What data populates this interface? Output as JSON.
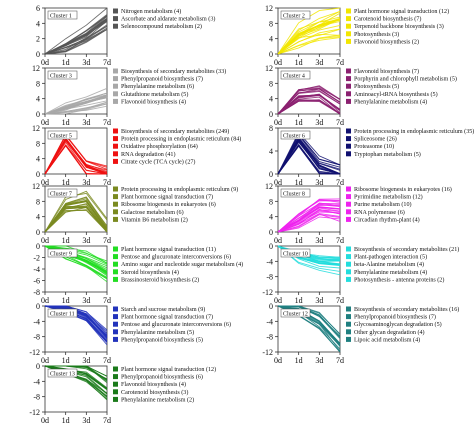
{
  "chart_data": [
    {
      "type": "line",
      "cluster": "Cluster 1",
      "color": "#555555",
      "x": [
        "0d",
        "1d",
        "3d",
        "7d"
      ],
      "yticks": [
        0,
        2,
        4,
        6
      ],
      "ylim": [
        0,
        6
      ],
      "profile": [
        0,
        1.2,
        2.6,
        4.6
      ],
      "spread": 1.3,
      "n": 18,
      "pathways": [
        "Nitrogen metabolism (4)",
        "Ascorbate and aldarate metabolism (3)",
        "Selenocompound metabolism (2)"
      ]
    },
    {
      "type": "line",
      "cluster": "Cluster 2",
      "color": "#f2e600",
      "x": [
        "0d",
        "1d",
        "3d",
        "7d"
      ],
      "yticks": [
        0,
        4,
        8,
        12
      ],
      "ylim": [
        0,
        12
      ],
      "profile": [
        0,
        5,
        7.5,
        9
      ],
      "spread": 4,
      "n": 18,
      "pathways": [
        "Plant hormone signal transduction (12)",
        "Carotenoid biosynthesis (7)",
        "Terpenoid backbone biosynthesis (3)",
        "Photosynthesis (3)",
        "Flavonoid biosynthesis (2)"
      ]
    },
    {
      "type": "line",
      "cluster": "Cluster 3",
      "color": "#a8a8a8",
      "x": [
        "0d",
        "1d",
        "3d",
        "7d"
      ],
      "yticks": [
        0,
        4,
        8,
        12
      ],
      "ylim": [
        0,
        12
      ],
      "profile": [
        0,
        1.5,
        3,
        4.5
      ],
      "spread": 2,
      "n": 18,
      "pathways": [
        "Biosynthesis of secondary metabolites (33)",
        "Phenylpropanoid biosynthesis (7)",
        "Phenylalanine metabolism (6)",
        "Glutathione metabolism (5)",
        "Flavonoid biosynthesis (4)"
      ]
    },
    {
      "type": "line",
      "cluster": "Cluster 4",
      "color": "#8b2070",
      "x": [
        "0d",
        "1d",
        "3d",
        "7d"
      ],
      "yticks": [
        0,
        4,
        8,
        12
      ],
      "ylim": [
        0,
        12
      ],
      "profile": [
        0,
        4.5,
        5,
        1
      ],
      "spread": 2.5,
      "n": 18,
      "pathways": [
        "Flavonoid biosynthesis (7)",
        "Porphyrin and chlorophyll metabolism (5)",
        "Photosynthesis (5)",
        "Aminoacyl-tRNA biosynthesis (5)",
        "Phenylalanine metabolism (4)"
      ]
    },
    {
      "type": "line",
      "cluster": "Cluster 5",
      "color": "#ee1111",
      "x": [
        "0d",
        "1d",
        "3d",
        "7d"
      ],
      "yticks": [
        0,
        4,
        8,
        12
      ],
      "ylim": [
        0,
        12
      ],
      "profile": [
        0,
        9,
        2,
        0
      ],
      "spread": 2,
      "n": 18,
      "pathways": [
        "Biosynthesis of secondary metabolites (249)",
        "Protein processing in endoplasmic reticulum (84)",
        "Oxidative phosphorylation (64)",
        "RNA degradation (41)",
        "Citrate cycle (TCA cycle) (27)"
      ]
    },
    {
      "type": "line",
      "cluster": "Cluster 6",
      "color": "#101070",
      "x": [
        "0d",
        "1d",
        "3d",
        "7d"
      ],
      "yticks": [
        0,
        4,
        8
      ],
      "ylim": [
        0,
        8
      ],
      "profile": [
        0,
        6,
        1.5,
        0
      ],
      "spread": 1.5,
      "n": 18,
      "pathways": [
        "Protein processing in endoplasmic reticulum (35)",
        "Spliceosome (26)",
        "Proteasome (10)",
        "Tryptophan metabolism (5)"
      ]
    },
    {
      "type": "line",
      "cluster": "Cluster 7",
      "color": "#7a8a20",
      "x": [
        "0d",
        "1d",
        "3d",
        "7d"
      ],
      "yticks": [
        0,
        4,
        8,
        12
      ],
      "ylim": [
        0,
        12
      ],
      "profile": [
        0,
        7,
        8,
        0.5
      ],
      "spread": 2.5,
      "n": 18,
      "pathways": [
        "Protein processing in endoplasmic reticulum (9)",
        "Plant hormone signal transduction (7)",
        "Ribosome biogenesis in eukaryotes (6)",
        "Galactose metabolism (6)",
        "Vitamin B6 metabolism (2)"
      ]
    },
    {
      "type": "line",
      "cluster": "Cluster 8",
      "color": "#ee22ee",
      "x": [
        "0d",
        "1d",
        "3d",
        "7d"
      ],
      "yticks": [
        0,
        4,
        8,
        12
      ],
      "ylim": [
        0,
        12
      ],
      "profile": [
        0,
        3,
        6.5,
        6
      ],
      "spread": 2.5,
      "n": 18,
      "pathways": [
        "Ribosome biogenesis in eukaryotes (16)",
        "Pyrimidine metabolism (12)",
        "Purine metabolism (10)",
        "RNA polymerase (6)",
        "Circadian rhythm-plant (4)"
      ]
    },
    {
      "type": "line",
      "cluster": "Cluster 9",
      "color": "#22dd22",
      "x": [
        "0d",
        "1d",
        "3d",
        "7d"
      ],
      "yticks": [
        0,
        -2,
        -4,
        -6,
        -8
      ],
      "ylim": [
        -8,
        0
      ],
      "profile": [
        0,
        -1.2,
        -2.5,
        -4.5
      ],
      "spread": 1.5,
      "n": 18,
      "pathways": [
        "Plant hormone signal transduction (11)",
        "Pentose and glucuronate interconversions (6)",
        "Amino sugar and nucleotide sugar metabolism (4)",
        "Steroid biosynthesis (4)",
        "Brassinosteroid biosynthesis (2)"
      ]
    },
    {
      "type": "line",
      "cluster": "Cluster 10",
      "color": "#22dddd",
      "x": [
        "0d",
        "1d",
        "3d",
        "7d"
      ],
      "yticks": [
        0,
        -4,
        -8,
        -12
      ],
      "ylim": [
        -12,
        0
      ],
      "profile": [
        0,
        -3,
        -4.5,
        -5
      ],
      "spread": 2,
      "n": 18,
      "pathways": [
        "Biosynthesis of secondary metabolites (21)",
        "Plant-pathogen interaction (5)",
        "beta-Alanine metabolism (4)",
        "Phenylalanine metabolism (4)",
        "Photosynthesis - antenna proteins (2)"
      ]
    },
    {
      "type": "line",
      "cluster": "Cluster 11",
      "color": "#2233bb",
      "x": [
        "0d",
        "1d",
        "3d",
        "7d"
      ],
      "yticks": [
        0,
        -4,
        -8,
        -12
      ],
      "ylim": [
        -12,
        0
      ],
      "profile": [
        0,
        -0.5,
        -2.5,
        -8
      ],
      "spread": 2,
      "n": 18,
      "pathways": [
        "Starch and sucrose metabolism (9)",
        "Plant hormone signal transduction (7)",
        "Pentose and glucuronate interconversions (6)",
        "Phenylalanine metabolism (5)",
        "Phenylpropanoid biosynthesis (5)"
      ]
    },
    {
      "type": "line",
      "cluster": "Cluster 12",
      "color": "#1f7f80",
      "x": [
        "0d",
        "1d",
        "3d",
        "7d"
      ],
      "yticks": [
        0,
        -4,
        -8,
        -12
      ],
      "ylim": [
        -12,
        0
      ],
      "profile": [
        0,
        -1,
        -4,
        -10
      ],
      "spread": 2,
      "n": 18,
      "pathways": [
        "Biosynthesis of secondary metabolites (16)",
        "Phenylpropanoid biosynthesis (7)",
        "Glycosaminoglycan degradation (5)",
        "Other glycan degradation (4)",
        "Lipoic acid metabolism (4)"
      ]
    },
    {
      "type": "line",
      "cluster": "Cluster 13",
      "color": "#1a7a1a",
      "x": [
        "0d",
        "1d",
        "3d",
        "7d"
      ],
      "yticks": [
        0,
        -4,
        -8,
        -12
      ],
      "ylim": [
        -12,
        0
      ],
      "profile": [
        0,
        -0.8,
        -2,
        -6
      ],
      "spread": 2.5,
      "n": 18,
      "pathways": [
        "Plant hormone signal transduction (12)",
        "Phenylpropanoid biosynthesis (6)",
        "Flavonoid biosynthesis (4)",
        "Carotenoid biosynthesis (3)",
        "Phenylalanine metabolism (2)"
      ]
    }
  ]
}
